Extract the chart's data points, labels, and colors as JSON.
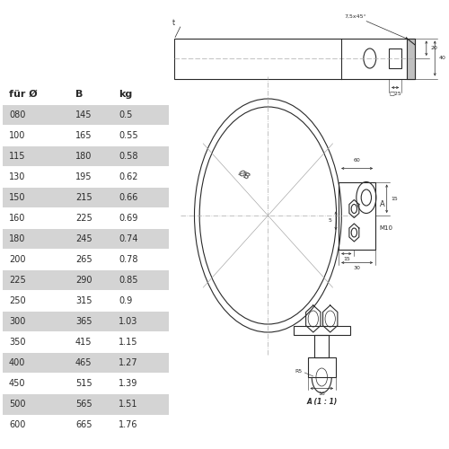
{
  "table_headers": [
    "für Ø",
    "B",
    "kg"
  ],
  "table_data": [
    [
      "080",
      "145",
      "0.5"
    ],
    [
      "100",
      "165",
      "0.55"
    ],
    [
      "115",
      "180",
      "0.58"
    ],
    [
      "130",
      "195",
      "0.62"
    ],
    [
      "150",
      "215",
      "0.66"
    ],
    [
      "160",
      "225",
      "0.69"
    ],
    [
      "180",
      "245",
      "0.74"
    ],
    [
      "200",
      "265",
      "0.78"
    ],
    [
      "225",
      "290",
      "0.85"
    ],
    [
      "250",
      "315",
      "0.9"
    ],
    [
      "300",
      "365",
      "1.03"
    ],
    [
      "350",
      "415",
      "1.15"
    ],
    [
      "400",
      "465",
      "1.27"
    ],
    [
      "450",
      "515",
      "1.39"
    ],
    [
      "500",
      "565",
      "1.51"
    ],
    [
      "600",
      "665",
      "1.76"
    ]
  ],
  "shaded_rows": [
    0,
    2,
    4,
    6,
    8,
    10,
    12,
    14
  ],
  "bg_color": "#ffffff",
  "shade_color": "#d4d4d4",
  "text_color": "#2a2a2a",
  "lc": "#2a2a2a",
  "dlc": "#aaaaaa",
  "font_size": 7.0,
  "header_font_size": 8.0
}
